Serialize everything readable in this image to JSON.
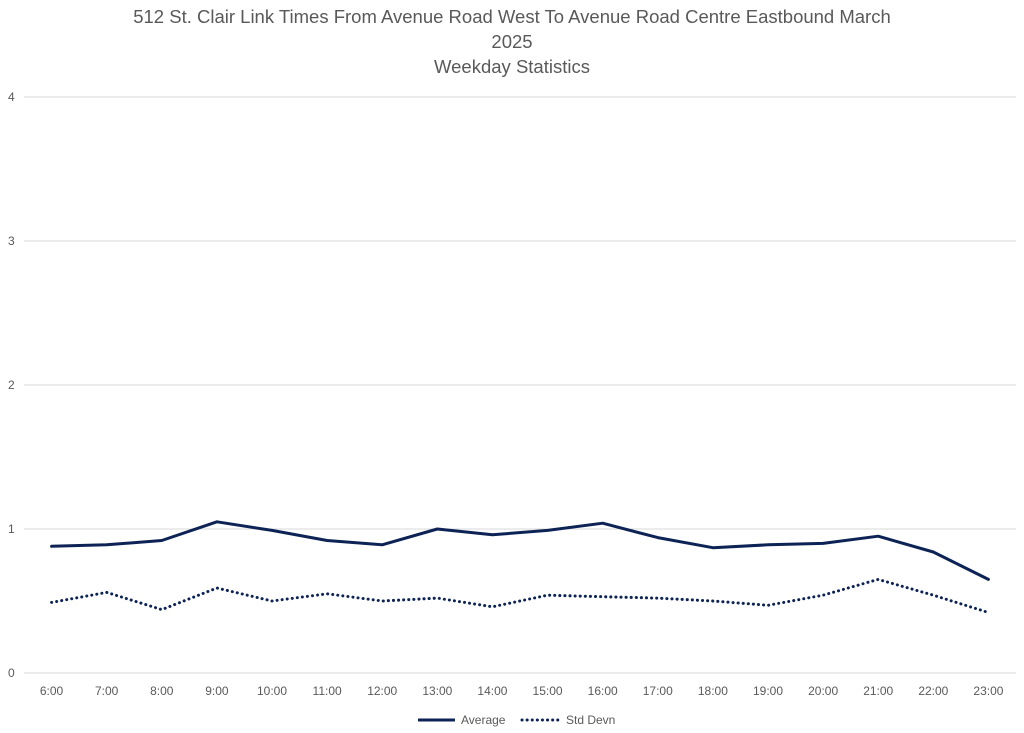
{
  "chart_data": {
    "type": "line",
    "title": "512 St. Clair Link Times From Avenue Road West To Avenue Road Centre Eastbound March 2025",
    "subtitle": "Weekday Statistics",
    "title_lines": [
      "512 St. Clair Link Times From Avenue Road West To Avenue Road Centre Eastbound March",
      "2025",
      "Weekday Statistics"
    ],
    "xlabel": "",
    "ylabel": "",
    "categories": [
      "6:00",
      "7:00",
      "8:00",
      "9:00",
      "10:00",
      "11:00",
      "12:00",
      "13:00",
      "14:00",
      "15:00",
      "16:00",
      "17:00",
      "18:00",
      "19:00",
      "20:00",
      "21:00",
      "22:00",
      "23:00"
    ],
    "ylim": [
      0,
      4
    ],
    "yticks": [
      0,
      1,
      2,
      3,
      4
    ],
    "grid": true,
    "legend_position": "bottom",
    "series": [
      {
        "name": "Average",
        "style": "solid",
        "color": "#0d2355",
        "values": [
          0.88,
          0.89,
          0.92,
          1.05,
          0.99,
          0.92,
          0.89,
          1.0,
          0.96,
          0.99,
          1.04,
          0.94,
          0.87,
          0.89,
          0.9,
          0.95,
          0.84,
          0.65
        ]
      },
      {
        "name": "Std Devn",
        "style": "dotted",
        "color": "#0d2355",
        "values": [
          0.49,
          0.56,
          0.44,
          0.59,
          0.5,
          0.55,
          0.5,
          0.52,
          0.46,
          0.54,
          0.53,
          0.52,
          0.5,
          0.47,
          0.54,
          0.65,
          0.54,
          0.42
        ]
      }
    ]
  }
}
